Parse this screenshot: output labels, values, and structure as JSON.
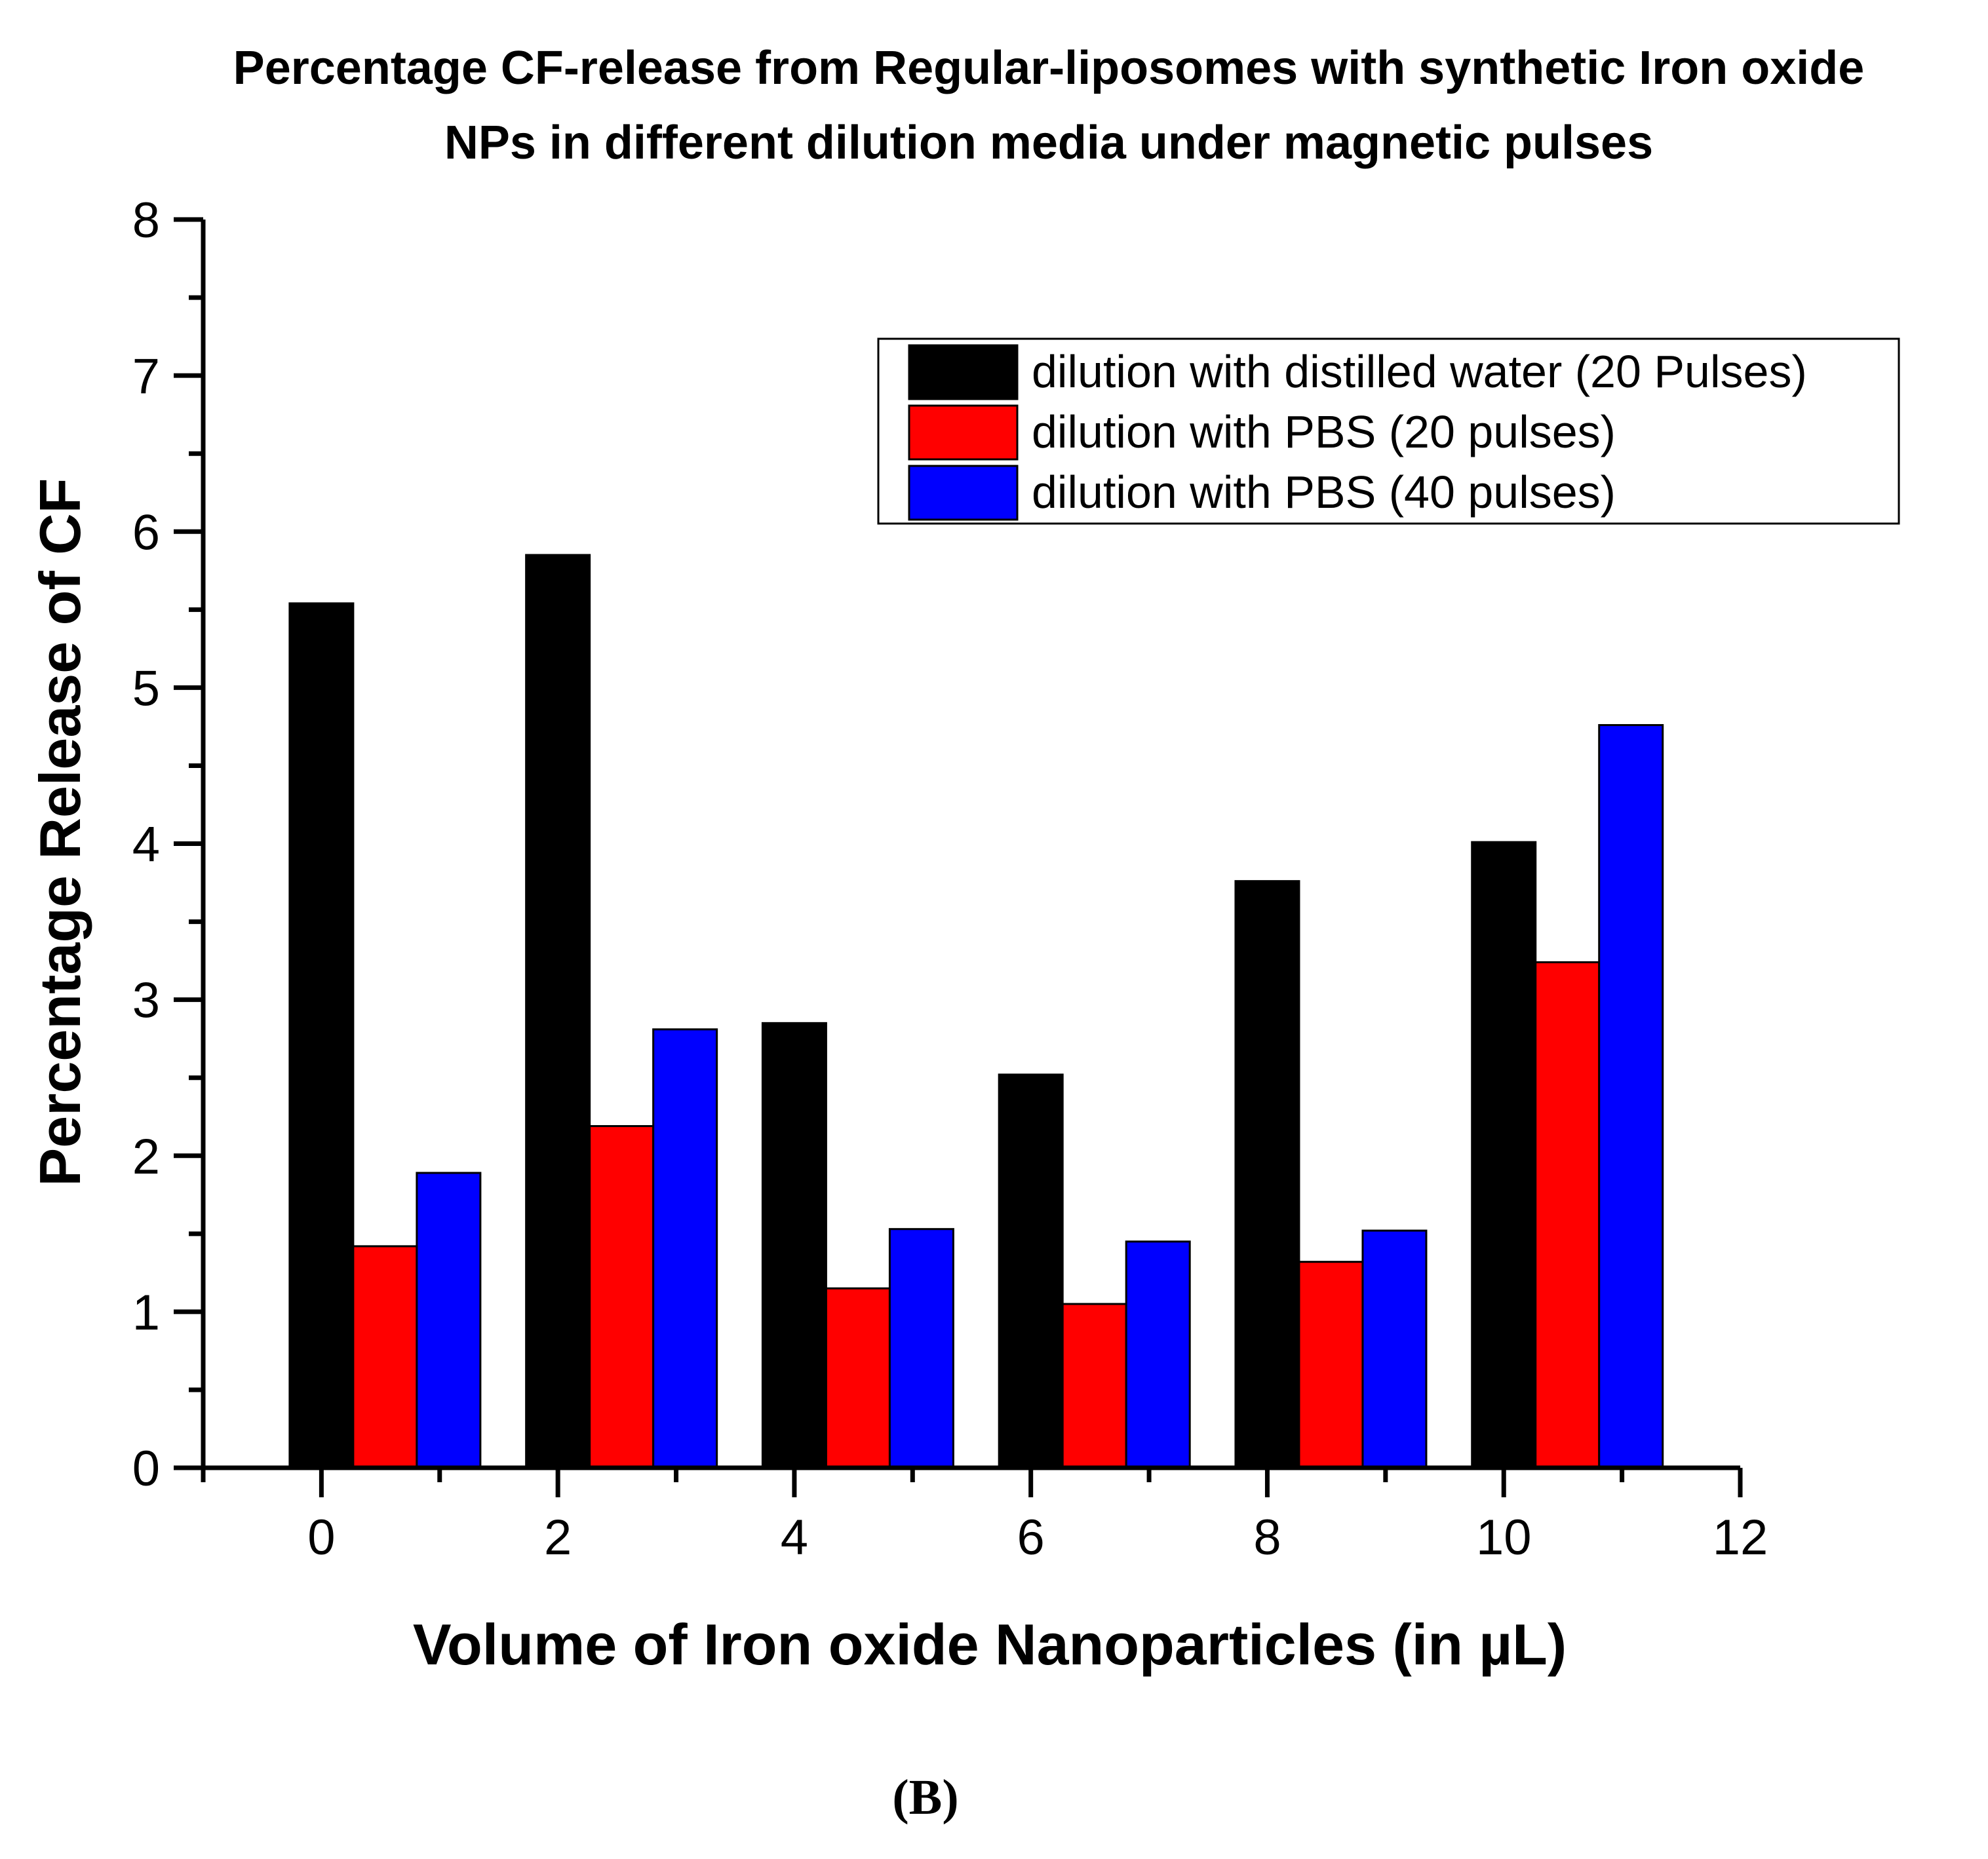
{
  "chart_data": {
    "type": "bar",
    "title_lines": [
      "Percentage CF-release from Regular-liposomes with synthetic Iron oxide",
      "NPs in different dilution media under magnetic pulses"
    ],
    "xlabel": "Volume  of Iron oxide Nanoparticles (in µL)",
    "ylabel": "Percentage Release of CF",
    "categories": [
      0,
      2,
      4,
      6,
      8,
      10
    ],
    "xlim": [
      -1,
      12
    ],
    "ylim": [
      0,
      8
    ],
    "xticks": [
      "0",
      "2",
      "4",
      "6",
      "8",
      "10",
      "12"
    ],
    "yticks": [
      "0",
      "1",
      "2",
      "3",
      "4",
      "5",
      "6",
      "7",
      "8"
    ],
    "grid": false,
    "legend_position": "top-right",
    "series": [
      {
        "name": "dilution with distilled water (20 Pulses)",
        "color": "#000000",
        "values": [
          5.54,
          5.85,
          2.85,
          2.52,
          3.76,
          4.01
        ]
      },
      {
        "name": "dilution with PBS (20 pulses)",
        "color": "#ff0000",
        "values": [
          1.42,
          2.19,
          1.15,
          1.05,
          1.32,
          3.24
        ]
      },
      {
        "name": "dilution with PBS (40 pulses)",
        "color": "#0000ff",
        "values": [
          1.89,
          2.81,
          1.53,
          1.45,
          1.52,
          4.76
        ]
      }
    ]
  },
  "caption": "(B)"
}
